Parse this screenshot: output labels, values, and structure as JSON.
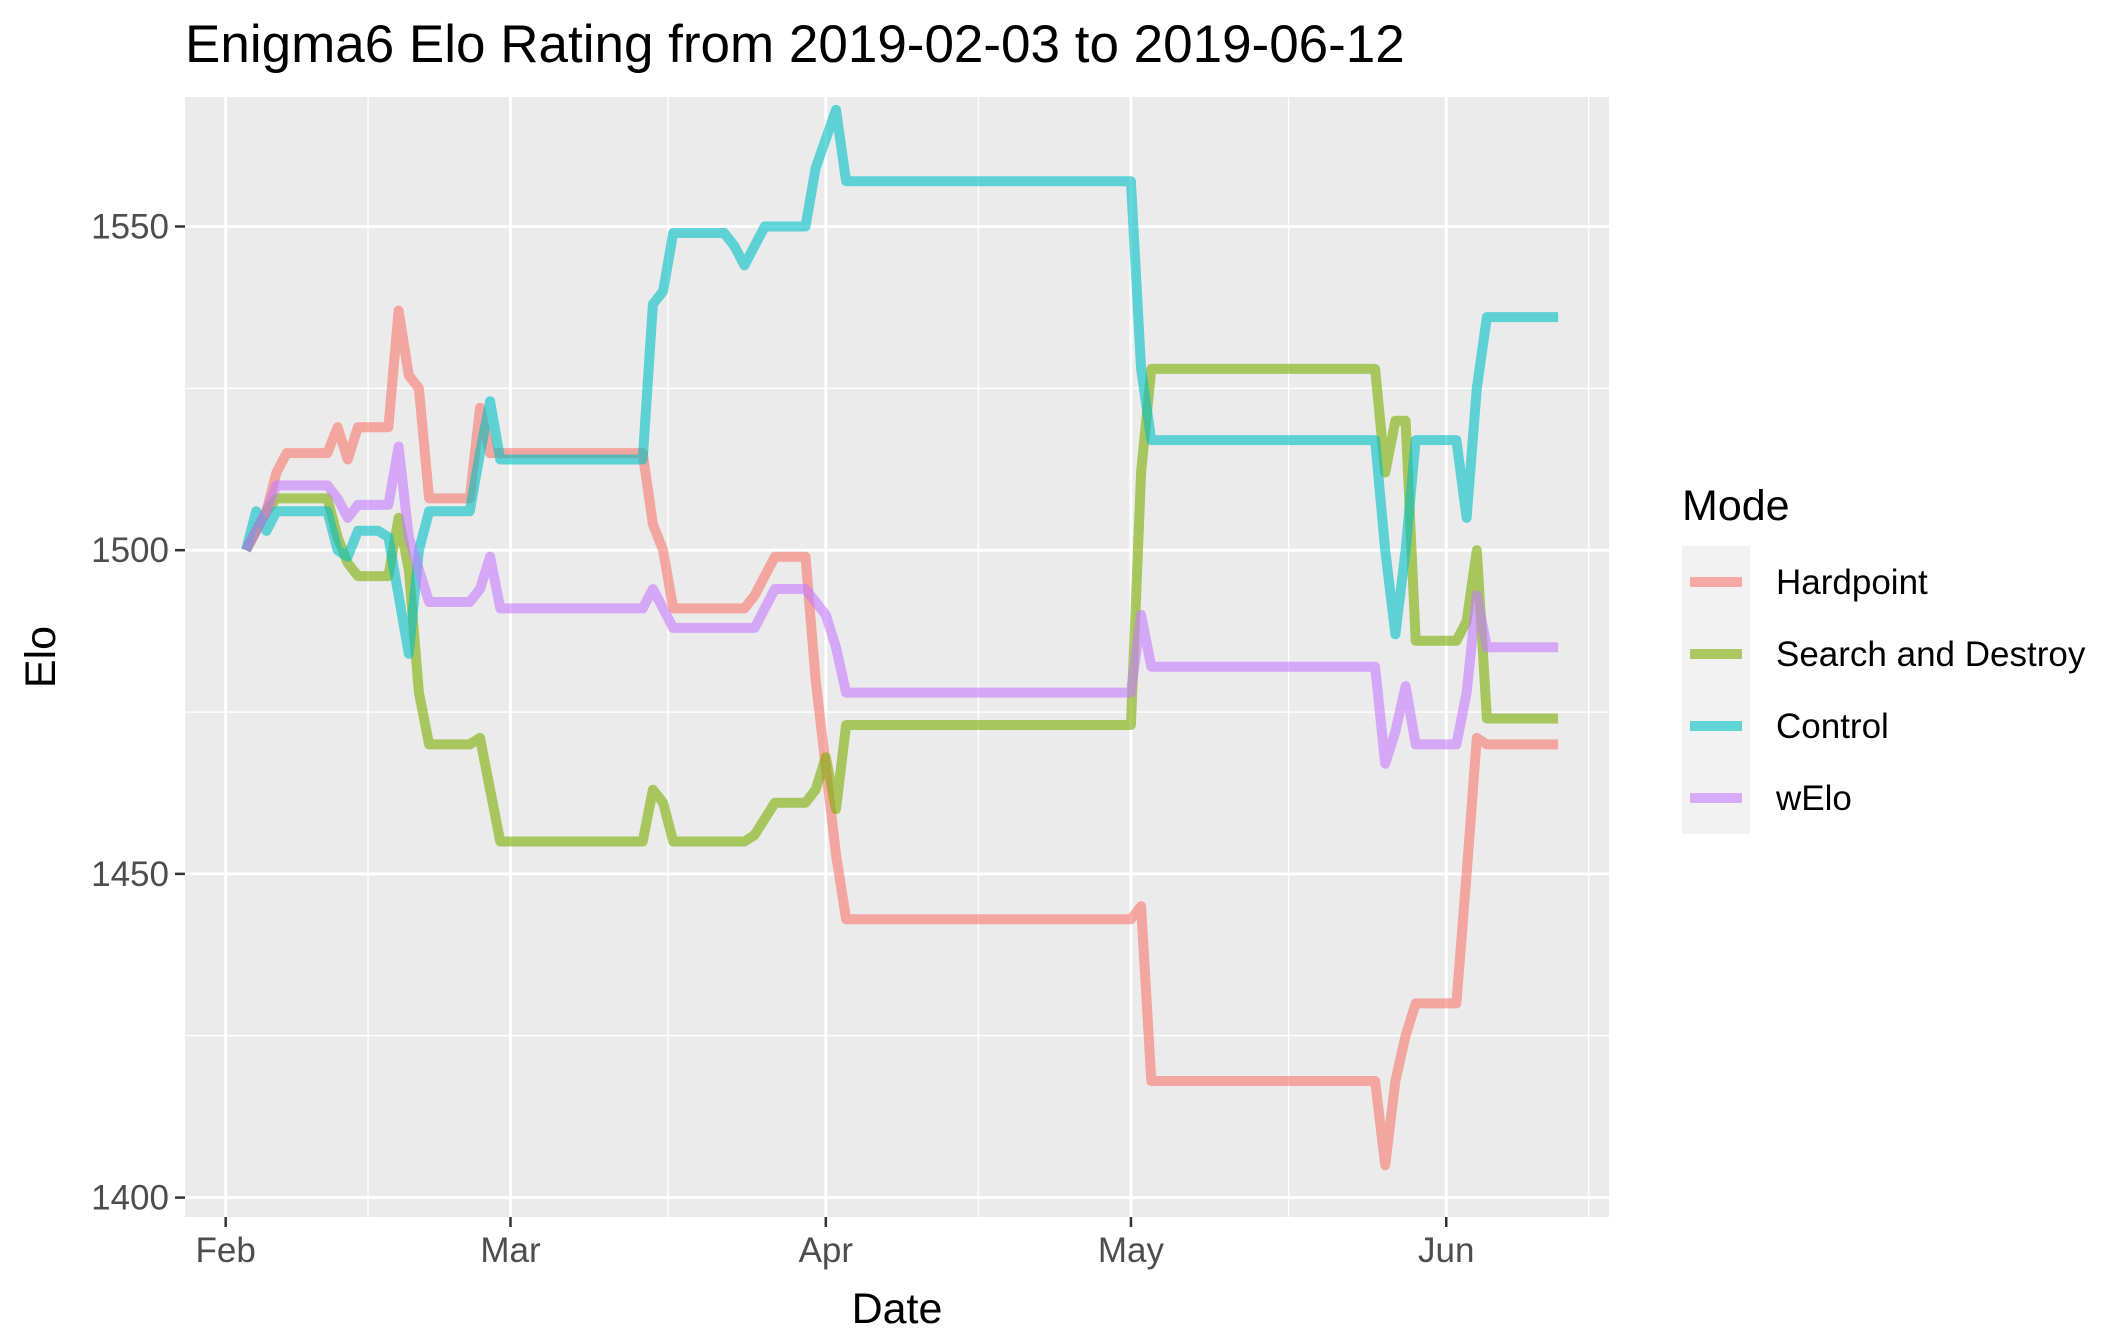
{
  "chart_data": {
    "type": "line",
    "title": "Enigma6 Elo Rating from 2019-02-03 to 2019-06-12",
    "xlabel": "Date",
    "ylabel": "Elo",
    "xlim": [
      "2019-01-28",
      "2019-06-17"
    ],
    "ylim": [
      1397,
      1570
    ],
    "x_ticks": [
      {
        "date": "2019-02-01",
        "label": "Feb"
      },
      {
        "date": "2019-03-01",
        "label": "Mar"
      },
      {
        "date": "2019-04-01",
        "label": "Apr"
      },
      {
        "date": "2019-05-01",
        "label": "May"
      },
      {
        "date": "2019-06-01",
        "label": "Jun"
      }
    ],
    "y_ticks": [
      1400,
      1450,
      1500,
      1550
    ],
    "grid": true,
    "legend": {
      "title": "Mode",
      "position": "right"
    },
    "series": [
      {
        "name": "Hardpoint",
        "color": "#F8766D",
        "points": [
          [
            "2019-02-03",
            1500
          ],
          [
            "2019-02-05",
            1506
          ],
          [
            "2019-02-06",
            1512
          ],
          [
            "2019-02-07",
            1515
          ],
          [
            "2019-02-08",
            1515
          ],
          [
            "2019-02-11",
            1515
          ],
          [
            "2019-02-12",
            1519
          ],
          [
            "2019-02-13",
            1514
          ],
          [
            "2019-02-14",
            1519
          ],
          [
            "2019-02-15",
            1519
          ],
          [
            "2019-02-17",
            1519
          ],
          [
            "2019-02-18",
            1537
          ],
          [
            "2019-02-19",
            1527
          ],
          [
            "2019-02-20",
            1525
          ],
          [
            "2019-02-21",
            1508
          ],
          [
            "2019-02-25",
            1508
          ],
          [
            "2019-02-26",
            1522
          ],
          [
            "2019-02-27",
            1515
          ],
          [
            "2019-03-14",
            1515
          ],
          [
            "2019-03-15",
            1504
          ],
          [
            "2019-03-16",
            1500
          ],
          [
            "2019-03-17",
            1491
          ],
          [
            "2019-03-24",
            1491
          ],
          [
            "2019-03-25",
            1493
          ],
          [
            "2019-03-27",
            1499
          ],
          [
            "2019-03-30",
            1499
          ],
          [
            "2019-03-31",
            1480
          ],
          [
            "2019-04-02",
            1453
          ],
          [
            "2019-04-03",
            1443
          ],
          [
            "2019-05-01",
            1443
          ],
          [
            "2019-05-02",
            1445
          ],
          [
            "2019-05-03",
            1418
          ],
          [
            "2019-05-25",
            1418
          ],
          [
            "2019-05-26",
            1405
          ],
          [
            "2019-05-27",
            1418
          ],
          [
            "2019-05-28",
            1425
          ],
          [
            "2019-05-29",
            1430
          ],
          [
            "2019-06-02",
            1430
          ],
          [
            "2019-06-03",
            1450
          ],
          [
            "2019-06-04",
            1471
          ],
          [
            "2019-06-05",
            1470
          ],
          [
            "2019-06-12",
            1470
          ]
        ]
      },
      {
        "name": "Search and Destroy",
        "color": "#7CAE00",
        "points": [
          [
            "2019-02-03",
            1500
          ],
          [
            "2019-02-05",
            1506
          ],
          [
            "2019-02-06",
            1508
          ],
          [
            "2019-02-07",
            1508
          ],
          [
            "2019-02-10",
            1508
          ],
          [
            "2019-02-11",
            1508
          ],
          [
            "2019-02-12",
            1502
          ],
          [
            "2019-02-13",
            1498
          ],
          [
            "2019-02-14",
            1496
          ],
          [
            "2019-02-17",
            1496
          ],
          [
            "2019-02-18",
            1505
          ],
          [
            "2019-02-19",
            1497
          ],
          [
            "2019-02-20",
            1478
          ],
          [
            "2019-02-21",
            1470
          ],
          [
            "2019-02-25",
            1470
          ],
          [
            "2019-02-26",
            1471
          ],
          [
            "2019-02-27",
            1463
          ],
          [
            "2019-02-28",
            1455
          ],
          [
            "2019-03-14",
            1455
          ],
          [
            "2019-03-15",
            1463
          ],
          [
            "2019-03-16",
            1461
          ],
          [
            "2019-03-17",
            1455
          ],
          [
            "2019-03-24",
            1455
          ],
          [
            "2019-03-25",
            1456
          ],
          [
            "2019-03-27",
            1461
          ],
          [
            "2019-03-30",
            1461
          ],
          [
            "2019-03-31",
            1463
          ],
          [
            "2019-04-01",
            1468
          ],
          [
            "2019-04-02",
            1460
          ],
          [
            "2019-04-03",
            1473
          ],
          [
            "2019-04-28",
            1473
          ],
          [
            "2019-04-30",
            1473
          ],
          [
            "2019-05-01",
            1473
          ],
          [
            "2019-05-02",
            1512
          ],
          [
            "2019-05-03",
            1528
          ],
          [
            "2019-05-25",
            1528
          ],
          [
            "2019-05-26",
            1512
          ],
          [
            "2019-05-27",
            1520
          ],
          [
            "2019-05-28",
            1520
          ],
          [
            "2019-05-29",
            1486
          ],
          [
            "2019-06-02",
            1486
          ],
          [
            "2019-06-03",
            1489
          ],
          [
            "2019-06-04",
            1500
          ],
          [
            "2019-06-05",
            1474
          ],
          [
            "2019-06-12",
            1474
          ]
        ]
      },
      {
        "name": "Control",
        "color": "#00BFC4",
        "points": [
          [
            "2019-02-03",
            1500
          ],
          [
            "2019-02-04",
            1506
          ],
          [
            "2019-02-05",
            1503
          ],
          [
            "2019-02-06",
            1506
          ],
          [
            "2019-02-10",
            1506
          ],
          [
            "2019-02-11",
            1506
          ],
          [
            "2019-02-12",
            1500
          ],
          [
            "2019-02-13",
            1499
          ],
          [
            "2019-02-14",
            1503
          ],
          [
            "2019-02-16",
            1503
          ],
          [
            "2019-02-17",
            1502
          ],
          [
            "2019-02-18",
            1493
          ],
          [
            "2019-02-19",
            1484
          ],
          [
            "2019-02-20",
            1500
          ],
          [
            "2019-02-21",
            1506
          ],
          [
            "2019-02-25",
            1506
          ],
          [
            "2019-02-26",
            1515
          ],
          [
            "2019-02-27",
            1523
          ],
          [
            "2019-02-28",
            1514
          ],
          [
            "2019-03-14",
            1514
          ],
          [
            "2019-03-15",
            1538
          ],
          [
            "2019-03-16",
            1540
          ],
          [
            "2019-03-17",
            1549
          ],
          [
            "2019-03-22",
            1549
          ],
          [
            "2019-03-23",
            1547
          ],
          [
            "2019-03-24",
            1544
          ],
          [
            "2019-03-26",
            1550
          ],
          [
            "2019-03-30",
            1550
          ],
          [
            "2019-03-31",
            1559
          ],
          [
            "2019-04-02",
            1568
          ],
          [
            "2019-04-03",
            1557
          ],
          [
            "2019-04-30",
            1557
          ],
          [
            "2019-05-01",
            1557
          ],
          [
            "2019-05-02",
            1528
          ],
          [
            "2019-05-03",
            1517
          ],
          [
            "2019-05-25",
            1517
          ],
          [
            "2019-05-26",
            1500
          ],
          [
            "2019-05-27",
            1487
          ],
          [
            "2019-05-28",
            1500
          ],
          [
            "2019-05-29",
            1517
          ],
          [
            "2019-06-02",
            1517
          ],
          [
            "2019-06-03",
            1505
          ],
          [
            "2019-06-04",
            1525
          ],
          [
            "2019-06-05",
            1536
          ],
          [
            "2019-06-12",
            1536
          ]
        ]
      },
      {
        "name": "wElo",
        "color": "#C77CFF",
        "points": [
          [
            "2019-02-03",
            1500
          ],
          [
            "2019-02-05",
            1506
          ],
          [
            "2019-02-06",
            1510
          ],
          [
            "2019-02-07",
            1510
          ],
          [
            "2019-02-10",
            1510
          ],
          [
            "2019-02-11",
            1510
          ],
          [
            "2019-02-12",
            1508
          ],
          [
            "2019-02-13",
            1505
          ],
          [
            "2019-02-14",
            1507
          ],
          [
            "2019-02-17",
            1507
          ],
          [
            "2019-02-18",
            1516
          ],
          [
            "2019-02-19",
            1502
          ],
          [
            "2019-02-20",
            1497
          ],
          [
            "2019-02-21",
            1492
          ],
          [
            "2019-02-25",
            1492
          ],
          [
            "2019-02-26",
            1494
          ],
          [
            "2019-02-27",
            1499
          ],
          [
            "2019-02-28",
            1491
          ],
          [
            "2019-03-14",
            1491
          ],
          [
            "2019-03-15",
            1494
          ],
          [
            "2019-03-16",
            1491
          ],
          [
            "2019-03-17",
            1488
          ],
          [
            "2019-03-25",
            1488
          ],
          [
            "2019-03-26",
            1491
          ],
          [
            "2019-03-27",
            1494
          ],
          [
            "2019-03-30",
            1494
          ],
          [
            "2019-04-01",
            1490
          ],
          [
            "2019-04-02",
            1485
          ],
          [
            "2019-04-03",
            1478
          ],
          [
            "2019-04-30",
            1478
          ],
          [
            "2019-05-01",
            1478
          ],
          [
            "2019-05-02",
            1490
          ],
          [
            "2019-05-03",
            1482
          ],
          [
            "2019-05-25",
            1482
          ],
          [
            "2019-05-26",
            1467
          ],
          [
            "2019-05-27",
            1472
          ],
          [
            "2019-05-28",
            1479
          ],
          [
            "2019-05-29",
            1470
          ],
          [
            "2019-06-02",
            1470
          ],
          [
            "2019-06-03",
            1478
          ],
          [
            "2019-06-04",
            1493
          ],
          [
            "2019-06-05",
            1485
          ],
          [
            "2019-06-12",
            1485
          ]
        ]
      }
    ]
  }
}
